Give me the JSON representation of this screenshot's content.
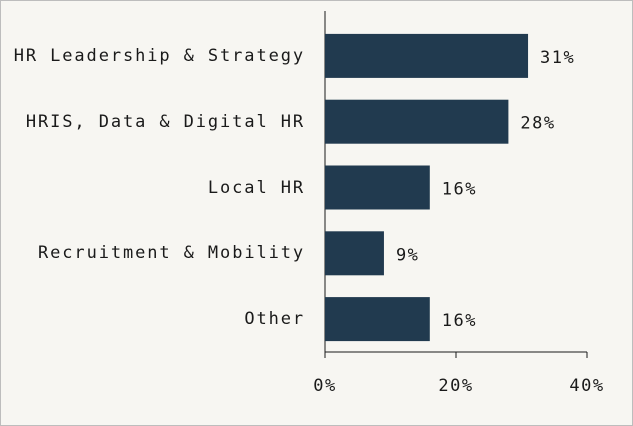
{
  "chart_data": {
    "type": "bar",
    "orientation": "horizontal",
    "categories": [
      "HR Leadership & Strategy",
      "HRIS, Data & Digital HR",
      "Local HR",
      "Recruitment & Mobility",
      "Other"
    ],
    "values": [
      31,
      28,
      16,
      9,
      16
    ],
    "value_labels": [
      "31%",
      "28%",
      "16%",
      "9%",
      "16%"
    ],
    "color": "#213a4f",
    "xlim": [
      0,
      40
    ],
    "xticks": [
      {
        "value": 0,
        "label": "0%"
      },
      {
        "value": 20,
        "label": "20%"
      },
      {
        "value": 40,
        "label": "40%"
      }
    ]
  }
}
